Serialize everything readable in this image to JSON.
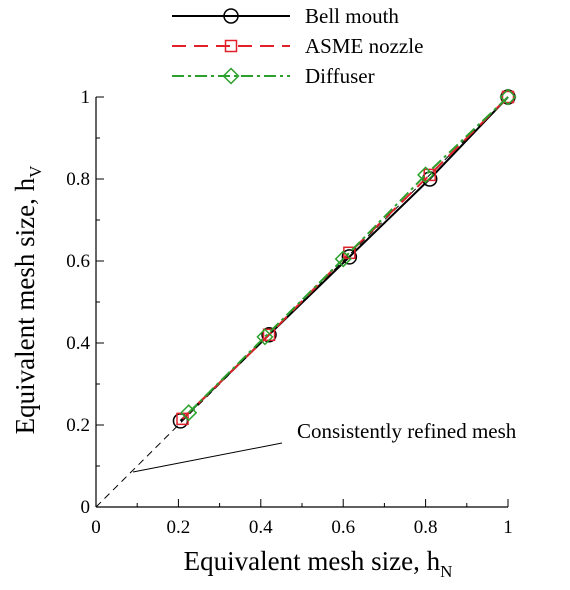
{
  "chart_data": {
    "type": "line",
    "xlabel": "Equivalent mesh size, h",
    "xlabel_sub": "N",
    "ylabel": "Equivalent mesh size, h",
    "ylabel_sub": "V",
    "xlim": [
      0,
      1
    ],
    "ylim": [
      0,
      1
    ],
    "xticks": [
      "0",
      "0.2",
      "0.4",
      "0.6",
      "0.8",
      "1"
    ],
    "yticks": [
      "0",
      "0.2",
      "0.4",
      "0.6",
      "0.8",
      "1"
    ],
    "grid": false,
    "legend_position": "top",
    "series": [
      {
        "name": "Bell mouth",
        "color": "#000000",
        "line_style": "solid",
        "marker": "circle",
        "x": [
          0.205,
          0.42,
          0.615,
          0.81,
          1.0
        ],
        "y": [
          0.21,
          0.42,
          0.61,
          0.8,
          1.0
        ]
      },
      {
        "name": "ASME nozzle",
        "color": "#e0202a",
        "line_style": "dashed",
        "marker": "square",
        "x": [
          0.21,
          0.42,
          0.615,
          0.81,
          1.0
        ],
        "y": [
          0.215,
          0.42,
          0.62,
          0.81,
          1.0
        ]
      },
      {
        "name": "Diffuser",
        "color": "#2ca02c",
        "line_style": "dashdot",
        "marker": "diamond",
        "x": [
          0.225,
          0.41,
          0.6,
          0.8,
          1.0
        ],
        "y": [
          0.23,
          0.415,
          0.605,
          0.81,
          1.0
        ]
      }
    ],
    "reference_line": {
      "label": "Consistently refined mesh",
      "x": [
        0,
        1
      ],
      "y": [
        0,
        1
      ]
    }
  }
}
